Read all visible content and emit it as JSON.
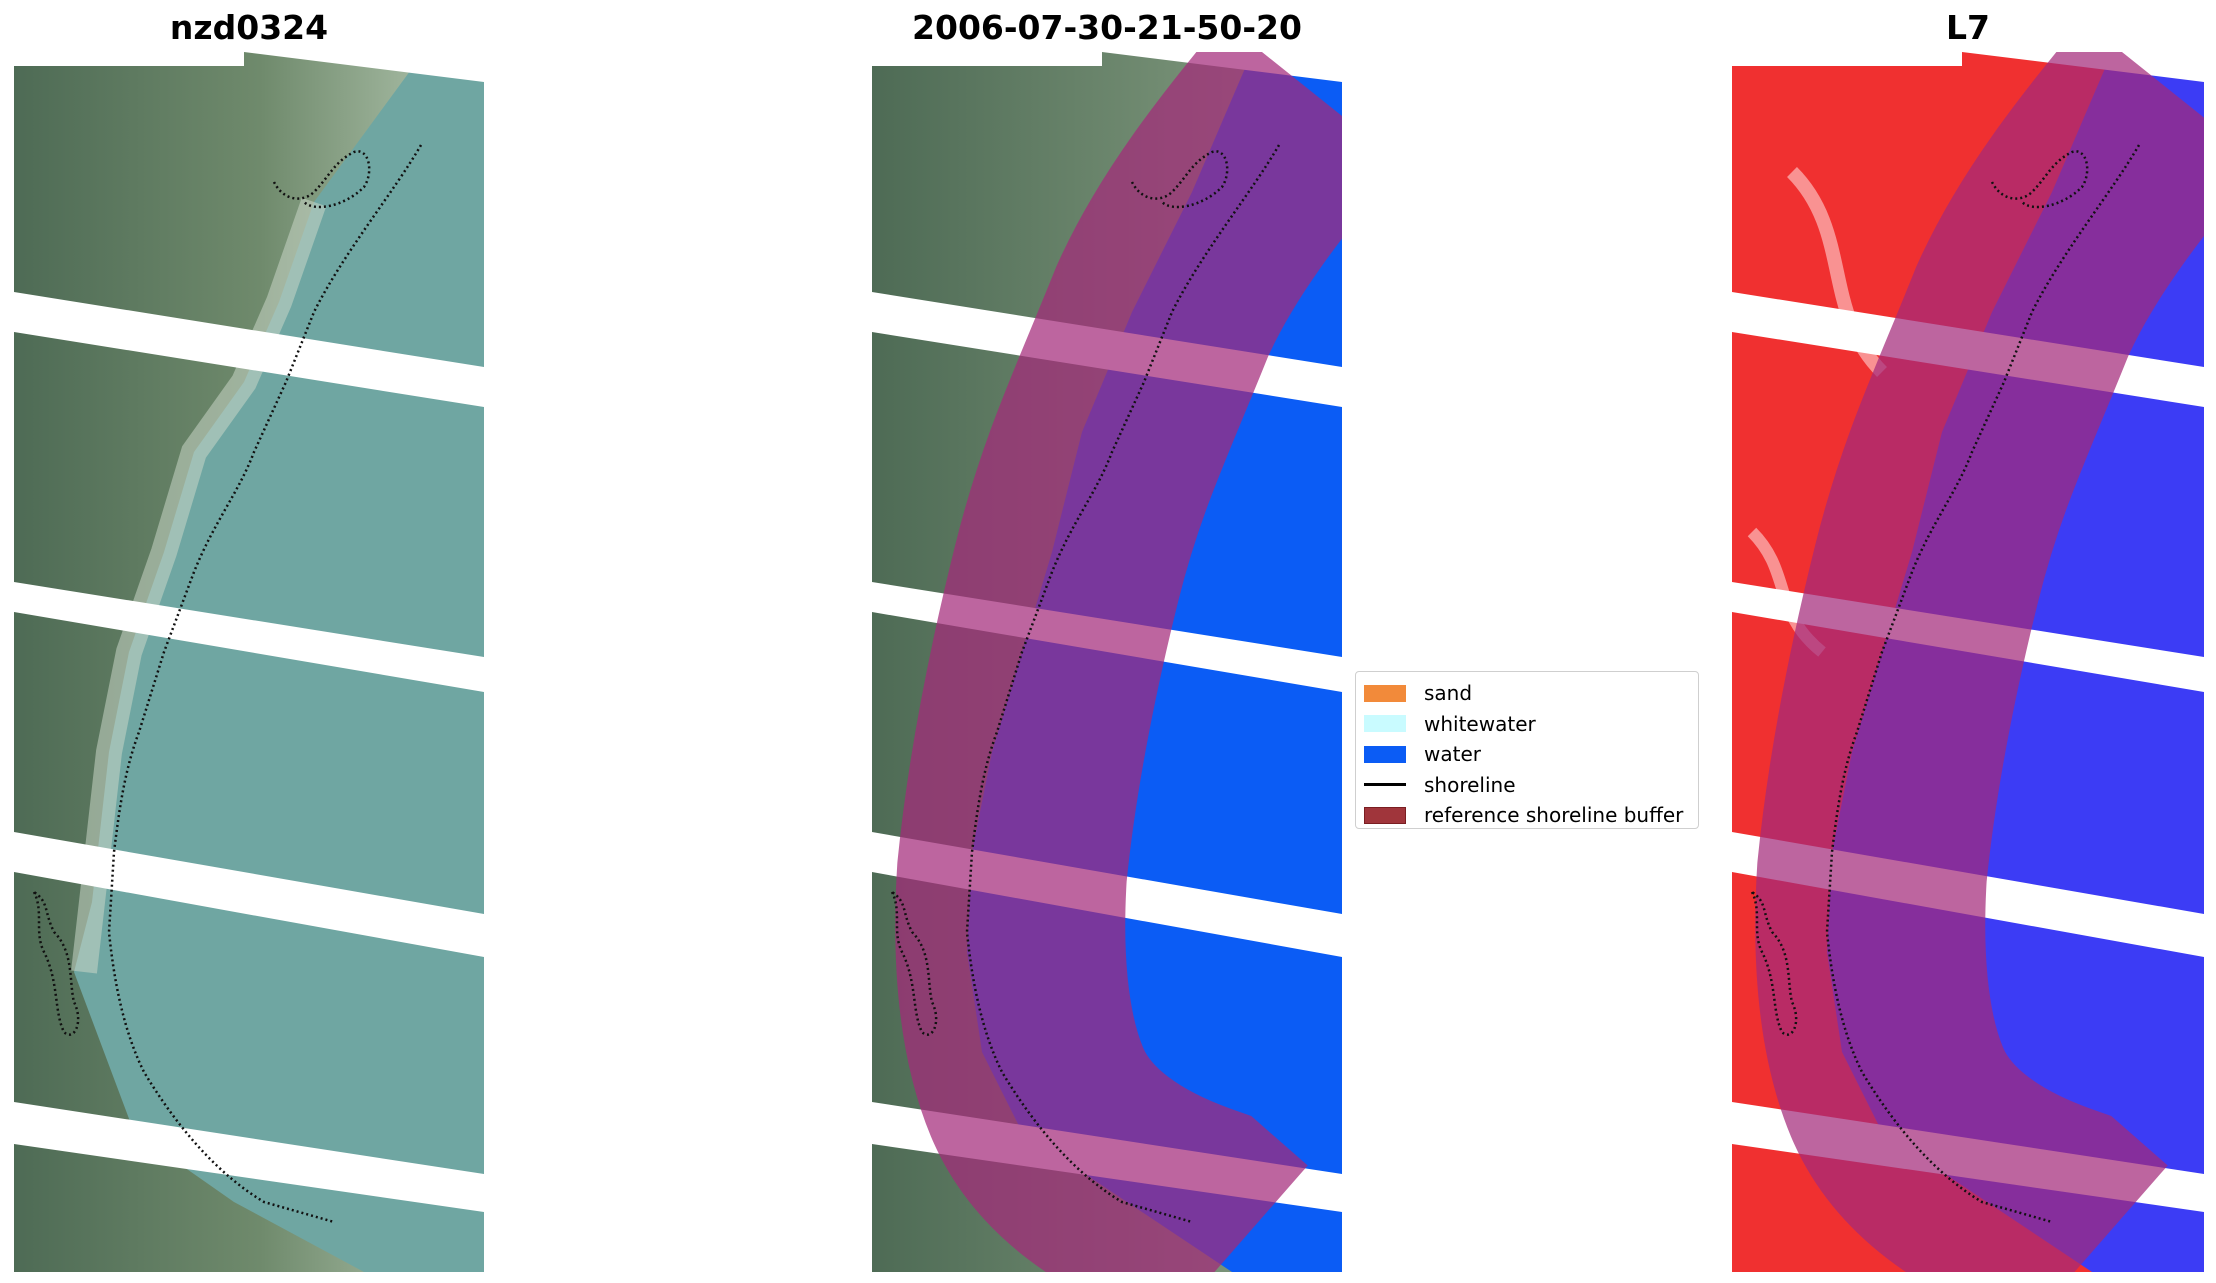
{
  "figure": {
    "panels": [
      {
        "title": "nzd0324",
        "content": "RGB satellite image with detected shoreline"
      },
      {
        "title": "2006-07-30-21-50-20",
        "content": "Classified image with reference shoreline buffer"
      },
      {
        "title": "L7",
        "content": "Water index image with reference shoreline buffer"
      }
    ]
  },
  "legend": {
    "items": [
      {
        "label": "sand",
        "color": "#f28a3a",
        "kind": "patch"
      },
      {
        "label": "whitewater",
        "color": "#c9fbff",
        "kind": "patch"
      },
      {
        "label": "water",
        "color": "#0b5cf5",
        "kind": "patch"
      },
      {
        "label": "shoreline",
        "color": "#000000",
        "kind": "line"
      },
      {
        "label": "reference shoreline buffer",
        "color": "#a0353b",
        "kind": "patch"
      }
    ]
  },
  "colors": {
    "land": "#5f7a63",
    "sea_rgb": "#6fa6a2",
    "sea_class": "#0b5cf5",
    "land_index": "#f03030",
    "sea_index": "#3c3cf5",
    "buffer": "#b03a78",
    "no_data": "#ffffff"
  }
}
